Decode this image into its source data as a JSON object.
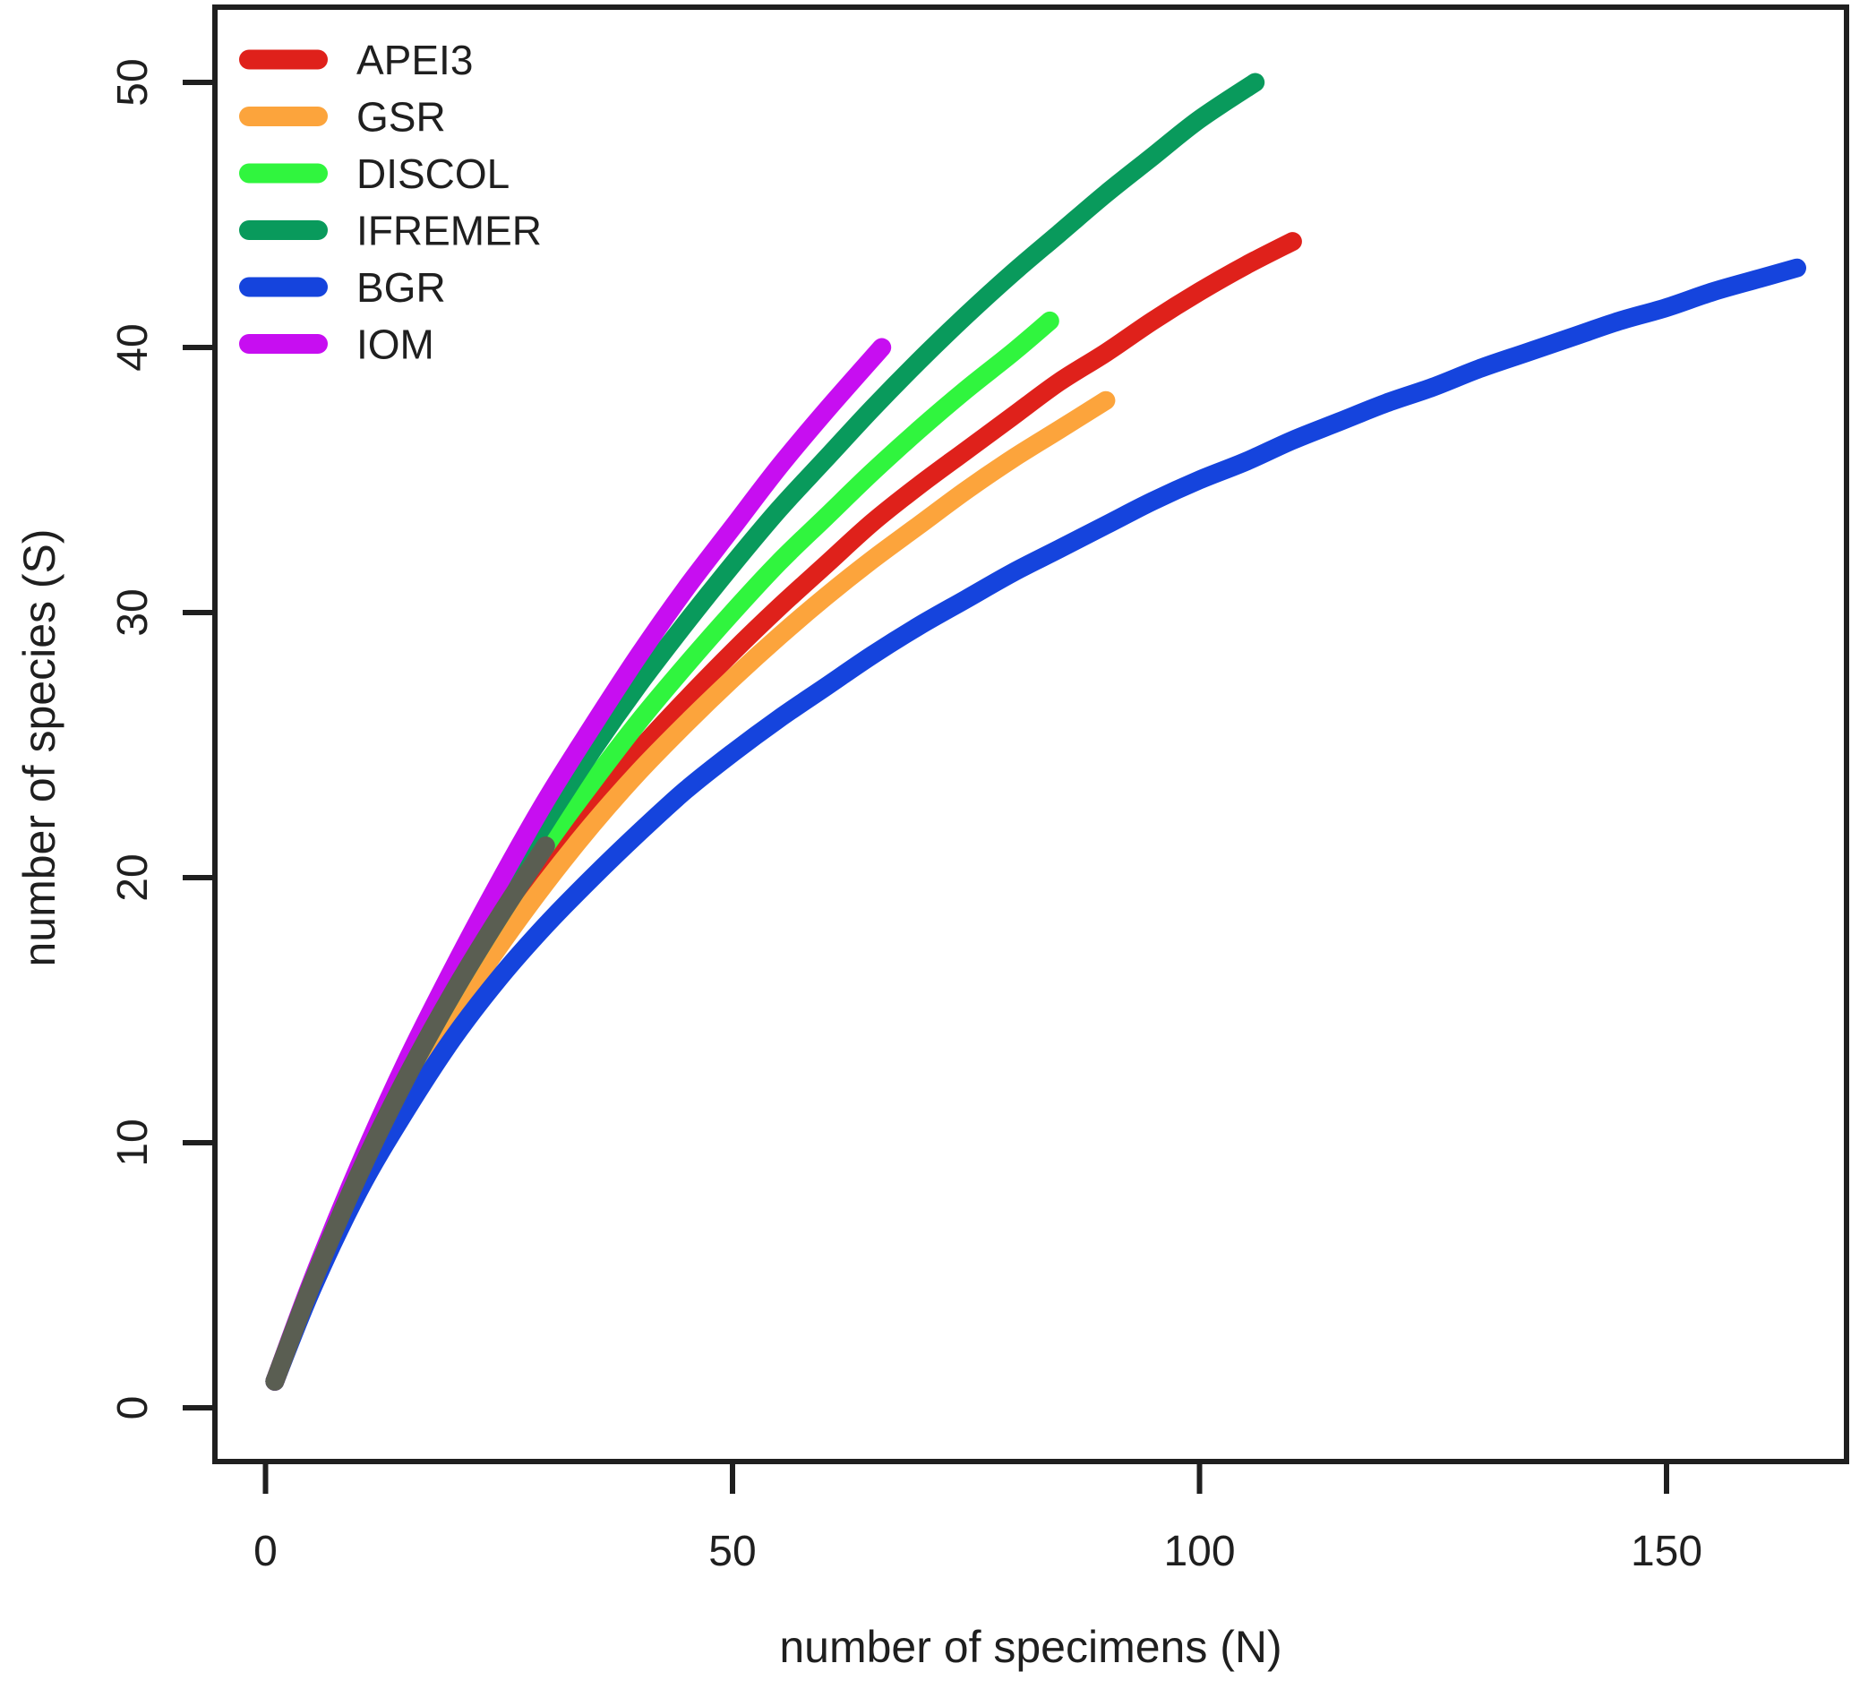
{
  "chart_data": {
    "type": "line",
    "title": "",
    "xlabel": "number of specimens (N)",
    "ylabel": "number of species (S)",
    "xlim": [
      0,
      170
    ],
    "ylim": [
      0,
      52
    ],
    "grid": false,
    "legend_position": "top-left",
    "axis_color": "#1f1f1f",
    "overlap_bundle_color": "#5a5e52",
    "xticks": [
      0,
      50,
      100,
      150
    ],
    "yticks": [
      0,
      10,
      20,
      30,
      40,
      50
    ],
    "xtick_labels": [
      "0",
      "50",
      "100",
      "150"
    ],
    "ytick_labels": [
      "0",
      "10",
      "20",
      "30",
      "40",
      "50"
    ],
    "series": [
      {
        "name": "APEI3",
        "color": "#df211b",
        "points": [
          [
            1,
            1
          ],
          [
            5,
            4.7
          ],
          [
            10,
            8.6
          ],
          [
            15,
            12.1
          ],
          [
            20,
            15.2
          ],
          [
            25,
            17.9
          ],
          [
            30,
            20.4
          ],
          [
            35,
            22.7
          ],
          [
            40,
            24.8
          ],
          [
            45,
            26.7
          ],
          [
            50,
            28.5
          ],
          [
            55,
            30.2
          ],
          [
            60,
            31.8
          ],
          [
            65,
            33.4
          ],
          [
            70,
            34.8
          ],
          [
            75,
            36.1
          ],
          [
            80,
            37.4
          ],
          [
            85,
            38.7
          ],
          [
            90,
            39.8
          ],
          [
            95,
            41
          ],
          [
            100,
            42.1
          ],
          [
            105,
            43.1
          ],
          [
            110,
            44
          ]
        ]
      },
      {
        "name": "GSR",
        "color": "#fca43c",
        "points": [
          [
            1,
            1
          ],
          [
            5,
            4.6
          ],
          [
            10,
            8.5
          ],
          [
            15,
            11.9
          ],
          [
            20,
            14.8
          ],
          [
            25,
            17.4
          ],
          [
            30,
            19.8
          ],
          [
            35,
            22
          ],
          [
            40,
            24
          ],
          [
            45,
            25.8
          ],
          [
            50,
            27.5
          ],
          [
            55,
            29.1
          ],
          [
            60,
            30.6
          ],
          [
            65,
            32
          ],
          [
            70,
            33.3
          ],
          [
            75,
            34.6
          ],
          [
            80,
            35.8
          ],
          [
            85,
            36.9
          ],
          [
            90,
            38
          ]
        ]
      },
      {
        "name": "DISCOL",
        "color": "#30f53e",
        "points": [
          [
            1,
            1
          ],
          [
            5,
            4.7
          ],
          [
            10,
            8.8
          ],
          [
            15,
            12.4
          ],
          [
            20,
            15.6
          ],
          [
            25,
            18.5
          ],
          [
            30,
            21.2
          ],
          [
            35,
            23.6
          ],
          [
            40,
            25.9
          ],
          [
            45,
            28
          ],
          [
            50,
            30
          ],
          [
            55,
            31.9
          ],
          [
            60,
            33.6
          ],
          [
            65,
            35.3
          ],
          [
            70,
            36.9
          ],
          [
            75,
            38.4
          ],
          [
            80,
            39.8
          ],
          [
            84,
            41
          ]
        ]
      },
      {
        "name": "IFREMER",
        "color": "#099a5c",
        "points": [
          [
            1,
            1
          ],
          [
            5,
            4.7
          ],
          [
            10,
            8.9
          ],
          [
            15,
            12.7
          ],
          [
            20,
            16.1
          ],
          [
            25,
            19.3
          ],
          [
            30,
            22.1
          ],
          [
            35,
            24.8
          ],
          [
            40,
            27.3
          ],
          [
            45,
            29.6
          ],
          [
            50,
            31.8
          ],
          [
            55,
            33.9
          ],
          [
            60,
            35.8
          ],
          [
            65,
            37.7
          ],
          [
            70,
            39.5
          ],
          [
            75,
            41.2
          ],
          [
            80,
            42.8
          ],
          [
            85,
            44.3
          ],
          [
            90,
            45.8
          ],
          [
            95,
            47.2
          ],
          [
            100,
            48.6
          ],
          [
            106,
            50
          ]
        ]
      },
      {
        "name": "BGR",
        "color": "#1544dd",
        "points": [
          [
            1,
            1
          ],
          [
            5,
            4.5
          ],
          [
            10,
            8.2
          ],
          [
            15,
            11.2
          ],
          [
            20,
            13.9
          ],
          [
            25,
            16.2
          ],
          [
            30,
            18.2
          ],
          [
            35,
            20
          ],
          [
            40,
            21.7
          ],
          [
            45,
            23.3
          ],
          [
            50,
            24.7
          ],
          [
            55,
            26
          ],
          [
            60,
            27.2
          ],
          [
            65,
            28.4
          ],
          [
            70,
            29.5
          ],
          [
            75,
            30.5
          ],
          [
            80,
            31.5
          ],
          [
            85,
            32.4
          ],
          [
            90,
            33.3
          ],
          [
            95,
            34.2
          ],
          [
            100,
            35
          ],
          [
            105,
            35.7
          ],
          [
            110,
            36.5
          ],
          [
            115,
            37.2
          ],
          [
            120,
            37.9
          ],
          [
            125,
            38.5
          ],
          [
            130,
            39.2
          ],
          [
            135,
            39.8
          ],
          [
            140,
            40.4
          ],
          [
            145,
            41
          ],
          [
            150,
            41.5
          ],
          [
            155,
            42.1
          ],
          [
            160,
            42.6
          ],
          [
            164,
            43
          ]
        ]
      },
      {
        "name": "IOM",
        "color": "#c70ef1",
        "points": [
          [
            1,
            1
          ],
          [
            5,
            4.8
          ],
          [
            10,
            9.1
          ],
          [
            15,
            13
          ],
          [
            20,
            16.5
          ],
          [
            25,
            19.8
          ],
          [
            30,
            22.9
          ],
          [
            35,
            25.7
          ],
          [
            40,
            28.4
          ],
          [
            45,
            30.9
          ],
          [
            50,
            33.2
          ],
          [
            55,
            35.5
          ],
          [
            60,
            37.6
          ],
          [
            66,
            40
          ]
        ]
      }
    ],
    "overlap_bundle_points": [
      [
        1,
        1
      ],
      [
        5,
        4.7
      ],
      [
        10,
        8.8
      ],
      [
        15,
        12.4
      ],
      [
        20,
        15.6
      ],
      [
        25,
        18.5
      ],
      [
        30,
        21.2
      ]
    ]
  }
}
